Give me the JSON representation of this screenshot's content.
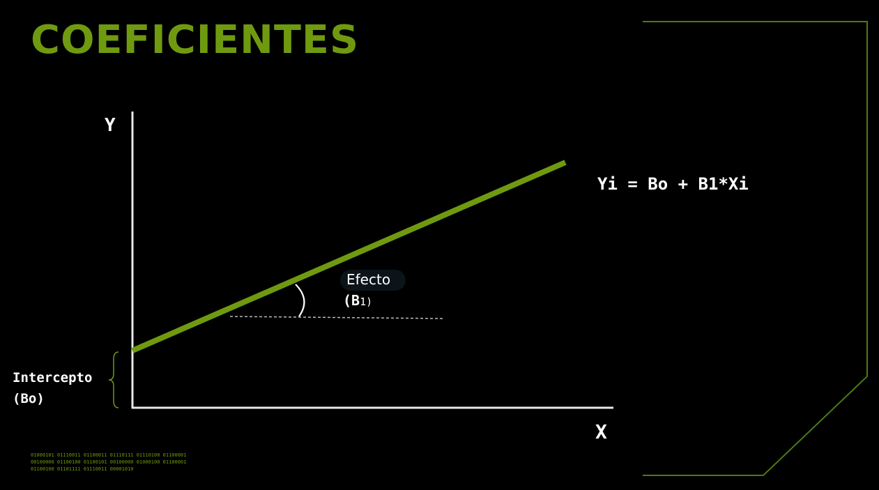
{
  "slide": {
    "title": "COEFICIENTES",
    "accent_color": "#6f9a10",
    "background_color": "#000000"
  },
  "diagram": {
    "y_axis_label": "Y",
    "x_axis_label": "X",
    "equation": {
      "y": "Yi",
      "eq": " = ",
      "b0": "Bo",
      "plus": " + ",
      "b1": "B1",
      "times_x": "*Xi"
    },
    "intercept": {
      "label": "Intercepto",
      "coef_open": "(",
      "coef": "Bo",
      "coef_close": ")"
    },
    "effect": {
      "label": "Efecto",
      "coef_open": "(",
      "coef": "B",
      "coef_sub": "1",
      "coef_close": ")"
    }
  },
  "decoration": {
    "binary_lines": [
      "01000101 01110011 01100011 01110111 01110100 01100001",
      "00100000 01100100 01100101 00100000 01000100 01100001",
      "01100100 01101111 01110011 00001010"
    ]
  }
}
